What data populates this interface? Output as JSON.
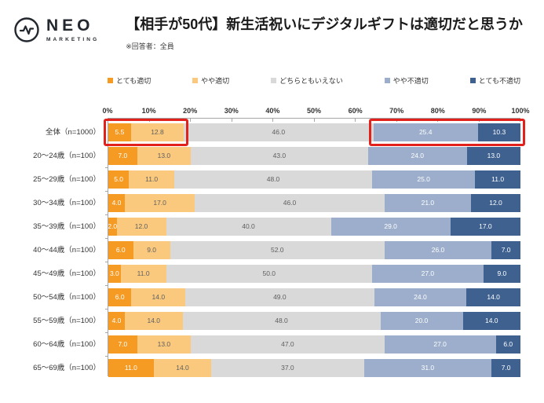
{
  "header": {
    "logo": {
      "name": "NEO",
      "sub": "MARKETING"
    },
    "title": "【相手が50代】新生活祝いにデジタルギフトは適切だと思うか",
    "note": "※回答者：全員"
  },
  "chart_data": {
    "type": "bar",
    "subtype": "horizontal-stacked-100pct",
    "title": "【相手が50代】新生活祝いにデジタルギフトは適切だと思うか",
    "legend_position": "top",
    "value_unit": "%",
    "x_axis": {
      "min": 0,
      "max": 100,
      "ticks": [
        "0%",
        "10%",
        "20%",
        "30%",
        "40%",
        "50%",
        "60%",
        "70%",
        "80%",
        "90%",
        "100%"
      ]
    },
    "categories": [
      "全体（n=1000）",
      "20～24歳（n=100）",
      "25～29歳（n=100）",
      "30～34歳（n=100）",
      "35～39歳（n=100）",
      "40～44歳（n=100）",
      "45～49歳（n=100）",
      "50～54歳（n=100）",
      "55～59歳（n=100）",
      "60～64歳（n=100）",
      "65～69歳（n=100）"
    ],
    "series": [
      {
        "name": "とても適切",
        "color": "#F59A23",
        "label_color": "#ffffff",
        "values": [
          5.5,
          7.0,
          5.0,
          4.0,
          2.0,
          6.0,
          3.0,
          6.0,
          4.0,
          7.0,
          11.0
        ]
      },
      {
        "name": "やや適切",
        "color": "#FAC97E",
        "label_color": "#5f5f5f",
        "values": [
          12.8,
          13.0,
          11.0,
          17.0,
          12.0,
          9.0,
          11.0,
          14.0,
          14.0,
          13.0,
          14.0
        ]
      },
      {
        "name": "どちらともいえない",
        "color": "#D9D9D9",
        "label_color": "#5f5f5f",
        "values": [
          46.0,
          43.0,
          48.0,
          46.0,
          40.0,
          52.0,
          50.0,
          49.0,
          48.0,
          47.0,
          37.0
        ]
      },
      {
        "name": "やや不適切",
        "color": "#9CAECB",
        "label_color": "#ffffff",
        "values": [
          25.4,
          24.0,
          25.0,
          21.0,
          29.0,
          26.0,
          27.0,
          24.0,
          20.0,
          27.0,
          31.0
        ]
      },
      {
        "name": "とても不適切",
        "color": "#3E6190",
        "label_color": "#ffffff",
        "values": [
          10.3,
          13.0,
          11.0,
          12.0,
          17.0,
          7.0,
          9.0,
          14.0,
          14.0,
          6.0,
          7.0
        ]
      }
    ],
    "highlights": [
      {
        "row": 0,
        "from_pct": 0,
        "to_pct": 18.3,
        "color": "#e2211c"
      },
      {
        "row": 0,
        "from_pct": 64.3,
        "to_pct": 100,
        "color": "#e2211c"
      }
    ]
  }
}
